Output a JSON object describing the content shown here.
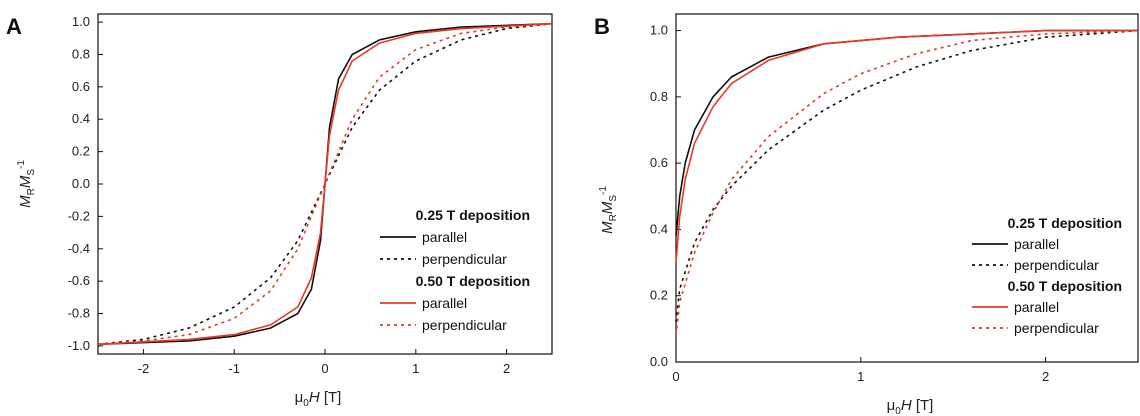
{
  "colors": {
    "black": "#111111",
    "red": "#e8392b"
  },
  "chart_data": [
    {
      "panel": "A",
      "type": "line",
      "xlabel": "μ0H [T]",
      "ylabel": "MRMS-1",
      "xlim": [
        -2.5,
        2.5
      ],
      "ylim": [
        -1.05,
        1.05
      ],
      "xticks": [
        -2,
        -1,
        0,
        1,
        2
      ],
      "yticks": [
        -1.0,
        -0.8,
        -0.6,
        -0.4,
        -0.2,
        0.0,
        0.2,
        0.4,
        0.6,
        0.8,
        1.0
      ],
      "legend": {
        "placement": "lower-right",
        "groups": [
          {
            "heading": "0.25 T  deposition",
            "items": [
              "parallel",
              "perpendicular"
            ]
          },
          {
            "heading": "0.50 T  deposition",
            "items": [
              "parallel",
              "perpendicular"
            ]
          }
        ]
      },
      "series": [
        {
          "group": 0,
          "item": 0,
          "color": "black",
          "style": "solid",
          "x": [
            -2.5,
            -1.5,
            -1.0,
            -0.6,
            -0.3,
            -0.15,
            -0.05,
            0.0,
            0.05,
            0.15,
            0.3,
            0.6,
            1.0,
            1.5,
            2.5
          ],
          "y": [
            -0.99,
            -0.97,
            -0.94,
            -0.89,
            -0.8,
            -0.65,
            -0.35,
            0.0,
            0.35,
            0.65,
            0.8,
            0.89,
            0.94,
            0.97,
            0.99
          ]
        },
        {
          "group": 0,
          "item": 1,
          "color": "black",
          "style": "dotted",
          "x": [
            -2.5,
            -2.0,
            -1.5,
            -1.0,
            -0.6,
            -0.3,
            0.0,
            0.3,
            0.6,
            1.0,
            1.5,
            2.0,
            2.5
          ],
          "y": [
            -0.99,
            -0.96,
            -0.89,
            -0.76,
            -0.58,
            -0.35,
            0.0,
            0.35,
            0.58,
            0.76,
            0.89,
            0.96,
            0.99
          ]
        },
        {
          "group": 1,
          "item": 0,
          "color": "red",
          "style": "solid",
          "x": [
            -2.5,
            -1.5,
            -1.0,
            -0.6,
            -0.3,
            -0.15,
            -0.05,
            0.0,
            0.05,
            0.15,
            0.3,
            0.6,
            1.0,
            1.5,
            2.5
          ],
          "y": [
            -0.99,
            -0.96,
            -0.93,
            -0.87,
            -0.76,
            -0.58,
            -0.3,
            0.0,
            0.3,
            0.58,
            0.76,
            0.87,
            0.93,
            0.96,
            0.99
          ]
        },
        {
          "group": 1,
          "item": 1,
          "color": "red",
          "style": "dotted",
          "x": [
            -2.5,
            -2.0,
            -1.5,
            -1.0,
            -0.6,
            -0.3,
            0.0,
            0.3,
            0.6,
            1.0,
            1.5,
            2.0,
            2.5
          ],
          "y": [
            -0.99,
            -0.97,
            -0.93,
            -0.83,
            -0.66,
            -0.4,
            0.0,
            0.4,
            0.66,
            0.83,
            0.93,
            0.97,
            0.99
          ]
        }
      ]
    },
    {
      "panel": "B",
      "type": "line",
      "xlabel": "μ0H [T]",
      "ylabel": "MRMS-1",
      "xlim": [
        0,
        2.5
      ],
      "ylim": [
        0,
        1.05
      ],
      "xticks": [
        0,
        1,
        2
      ],
      "yticks": [
        0.0,
        0.2,
        0.4,
        0.6,
        0.8,
        1.0
      ],
      "legend": {
        "placement": "lower-right",
        "groups": [
          {
            "heading": "0.25 T  deposition",
            "items": [
              "parallel",
              "perpendicular"
            ]
          },
          {
            "heading": "0.50 T  deposition",
            "items": [
              "parallel",
              "perpendicular"
            ]
          }
        ]
      },
      "series": [
        {
          "group": 0,
          "item": 0,
          "color": "black",
          "style": "solid",
          "x": [
            0.0,
            0.02,
            0.05,
            0.1,
            0.2,
            0.3,
            0.5,
            0.8,
            1.2,
            1.6,
            2.0,
            2.5
          ],
          "y": [
            0.38,
            0.5,
            0.6,
            0.7,
            0.8,
            0.86,
            0.92,
            0.96,
            0.98,
            0.99,
            1.0,
            1.0
          ]
        },
        {
          "group": 0,
          "item": 1,
          "color": "black",
          "style": "dotted",
          "x": [
            0.0,
            0.02,
            0.1,
            0.2,
            0.3,
            0.5,
            0.8,
            1.0,
            1.3,
            1.6,
            2.0,
            2.5
          ],
          "y": [
            0.12,
            0.22,
            0.36,
            0.46,
            0.53,
            0.64,
            0.76,
            0.82,
            0.89,
            0.94,
            0.98,
            1.0
          ]
        },
        {
          "group": 1,
          "item": 0,
          "color": "red",
          "style": "solid",
          "x": [
            0.0,
            0.02,
            0.05,
            0.1,
            0.2,
            0.3,
            0.5,
            0.8,
            1.2,
            1.6,
            2.0,
            2.5
          ],
          "y": [
            0.3,
            0.44,
            0.55,
            0.66,
            0.77,
            0.84,
            0.91,
            0.96,
            0.98,
            0.99,
            1.0,
            1.0
          ]
        },
        {
          "group": 1,
          "item": 1,
          "color": "red",
          "style": "dotted",
          "x": [
            0.0,
            0.02,
            0.1,
            0.2,
            0.3,
            0.5,
            0.8,
            1.0,
            1.3,
            1.6,
            2.0,
            2.5
          ],
          "y": [
            0.08,
            0.18,
            0.33,
            0.45,
            0.55,
            0.68,
            0.81,
            0.87,
            0.93,
            0.97,
            0.99,
            1.0
          ]
        }
      ]
    }
  ]
}
